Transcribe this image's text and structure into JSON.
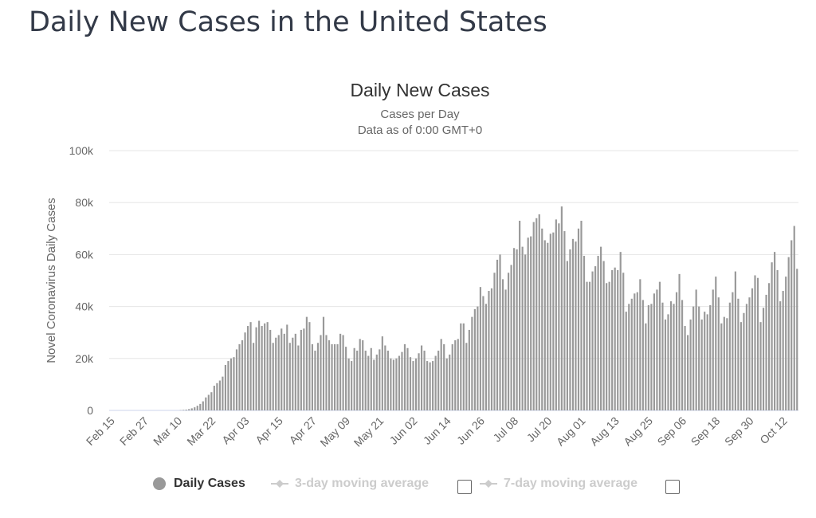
{
  "page": {
    "title": "Daily New Cases in the United States"
  },
  "chart_data": {
    "type": "bar",
    "title": "Daily New Cases",
    "subtitle": "Cases per Day",
    "subtitle2": "Data as of 0:00 GMT+0",
    "ylabel": "Novel Coronavirus Daily Cases",
    "xlabel": "",
    "ylim": [
      0,
      100000
    ],
    "y_ticks": [
      0,
      20000,
      40000,
      60000,
      80000,
      100000
    ],
    "y_tick_labels": [
      "0",
      "20k",
      "40k",
      "60k",
      "80k",
      "100k"
    ],
    "x_tick_labels": [
      "Feb 15",
      "Feb 27",
      "Mar 10",
      "Mar 22",
      "Apr 03",
      "Apr 15",
      "Apr 27",
      "May 09",
      "May 21",
      "Jun 02",
      "Jun 14",
      "Jun 26",
      "Jul 08",
      "Jul 20",
      "Aug 01",
      "Aug 13",
      "Aug 25",
      "Sep 06",
      "Sep 18",
      "Sep 30",
      "Oct 12"
    ],
    "grid": true,
    "legend_position": "bottom",
    "series": [
      {
        "name": "Daily Cases",
        "color": "#999999",
        "start_date": "Feb 15",
        "values": [
          0,
          0,
          0,
          0,
          0,
          0,
          0,
          0,
          0,
          0,
          0,
          0,
          0,
          0,
          0,
          0,
          0,
          0,
          0,
          0,
          0,
          0,
          0,
          0,
          0,
          100,
          200,
          300,
          500,
          800,
          1200,
          1800,
          2500,
          3500,
          5000,
          6000,
          7000,
          9500,
          10500,
          11500,
          13000,
          17500,
          19000,
          20000,
          20500,
          23500,
          25500,
          27000,
          30000,
          32500,
          34000,
          26000,
          32000,
          34500,
          32500,
          33500,
          34000,
          31000,
          26000,
          28000,
          29000,
          31500,
          29500,
          33000,
          26000,
          28000,
          29500,
          25000,
          31000,
          31500,
          36000,
          34000,
          25500,
          23000,
          26000,
          29000,
          36000,
          29000,
          27000,
          25500,
          25500,
          25500,
          29500,
          29000,
          24500,
          20000,
          19000,
          24000,
          23000,
          27500,
          27000,
          23000,
          21000,
          24000,
          19500,
          21500,
          23500,
          28500,
          25000,
          23000,
          20000,
          19500,
          20000,
          21000,
          22500,
          25500,
          24000,
          20500,
          19000,
          20000,
          22000,
          25000,
          23000,
          19000,
          18500,
          19000,
          21000,
          23000,
          27500,
          25500,
          20000,
          21500,
          25500,
          27000,
          27500,
          33500,
          33500,
          26000,
          31000,
          36000,
          39000,
          40000,
          47500,
          44000,
          41000,
          46000,
          47000,
          53000,
          58000,
          60000,
          50500,
          46500,
          53000,
          56000,
          62500,
          62000,
          73000,
          63000,
          60000,
          66500,
          67000,
          72500,
          74000,
          75500,
          70000,
          65500,
          64500,
          68000,
          68500,
          73500,
          72000,
          78500,
          69000,
          57500,
          62000,
          66000,
          65000,
          70000,
          73000,
          59500,
          49500,
          49500,
          53500,
          55500,
          59500,
          63000,
          57500,
          49000,
          49500,
          54000,
          55000,
          54000,
          61000,
          53000,
          38000,
          41000,
          43000,
          45000,
          45500,
          50500,
          42500,
          33500,
          40500,
          41000,
          45000,
          46500,
          49500,
          41500,
          35000,
          37000,
          42000,
          41000,
          45500,
          52500,
          42500,
          32500,
          29000,
          35000,
          40000,
          46500,
          40000,
          35000,
          38000,
          37000,
          40500,
          46500,
          51500,
          43500,
          33500,
          36000,
          35500,
          41500,
          45500,
          53500,
          43000,
          34000,
          37500,
          41000,
          43500,
          47000,
          52000,
          51000,
          34000,
          39500,
          44500,
          49000,
          57000,
          61000,
          54000,
          42000,
          46000,
          51500,
          59000,
          65500,
          71000,
          54500
        ]
      }
    ]
  },
  "legend": {
    "daily_cases": "Daily Cases",
    "avg3": "3-day moving average",
    "avg7": "7-day moving average"
  },
  "colors": {
    "bar": "#999999",
    "grid": "#e6e6e6",
    "axis_text": "#666666",
    "title": "#333333",
    "legend_disabled": "#cccccc"
  }
}
